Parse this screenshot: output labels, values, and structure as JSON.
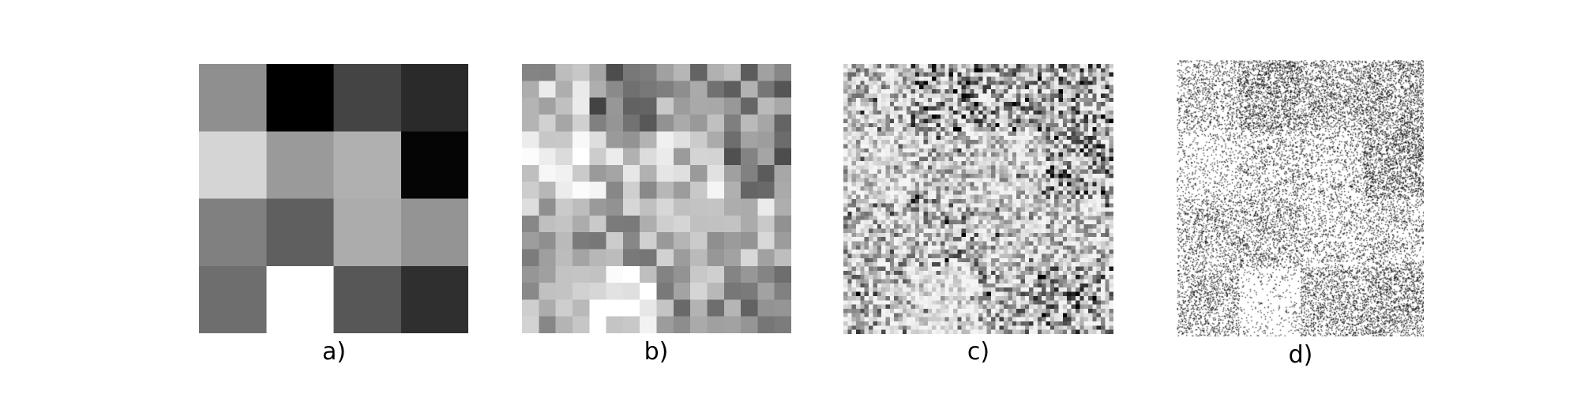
{
  "figure": {
    "panels": [
      {
        "id": "a",
        "label": "a)",
        "kind": "pixel-grid",
        "grid": 4,
        "gray_levels": [
          [
            143,
            0,
            68,
            42
          ],
          [
            213,
            154,
            176,
            5
          ],
          [
            128,
            95,
            172,
            148
          ],
          [
            110,
            255,
            87,
            47
          ]
        ]
      },
      {
        "id": "b",
        "label": "b)",
        "kind": "pixel-grid",
        "grid": 16
      },
      {
        "id": "c",
        "label": "c)",
        "kind": "pixel-grid",
        "grid": 64
      },
      {
        "id": "d",
        "label": "d)",
        "kind": "stipple",
        "dot_count": 16000
      }
    ]
  }
}
